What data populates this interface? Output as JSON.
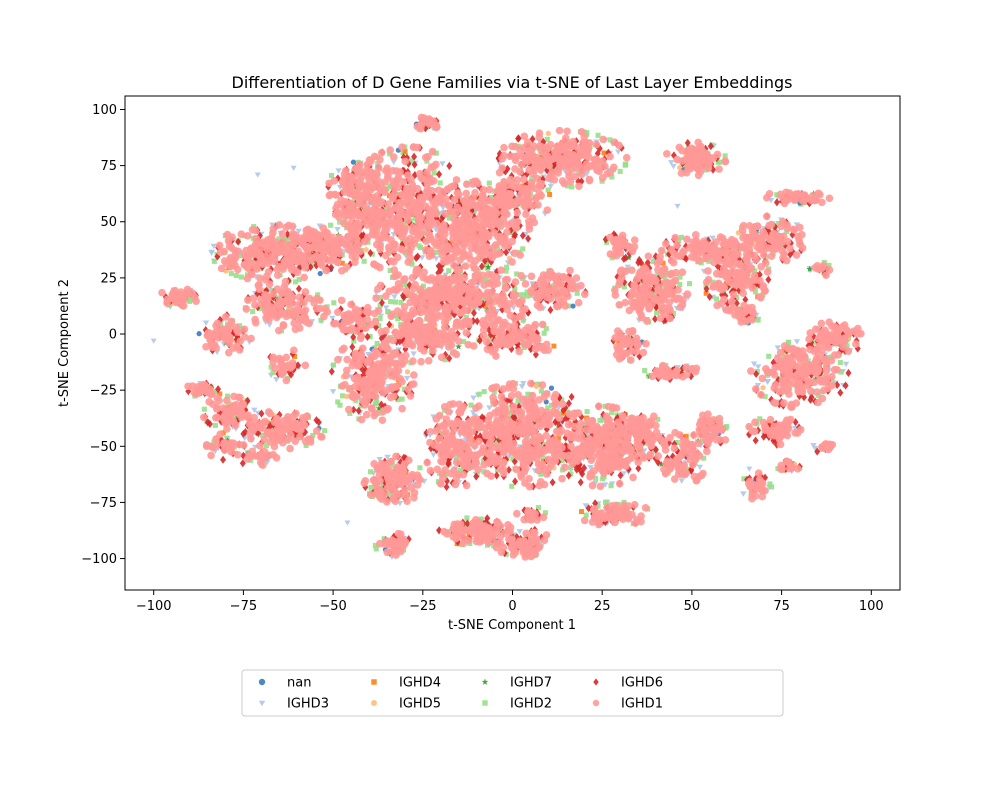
{
  "chart_data": {
    "type": "scatter",
    "title": "Differentiation of D Gene Families via t-SNE of Last Layer Embeddings",
    "xlabel": "t-SNE Component 1",
    "ylabel": "t-SNE Component 2",
    "xlim": [
      -108,
      108
    ],
    "ylim": [
      -114,
      106
    ],
    "xticks": [
      -100,
      -75,
      -50,
      -25,
      0,
      25,
      50,
      75,
      100
    ],
    "yticks": [
      -100,
      -75,
      -50,
      -25,
      0,
      25,
      50,
      75,
      100
    ],
    "grid": false,
    "legend_position": "bottom",
    "legend_columns": 5,
    "series": [
      {
        "name": "nan",
        "marker": "circle",
        "color": "#3a7bbf"
      },
      {
        "name": "IGHD3",
        "marker": "triangle-down",
        "color": "#aec7e8"
      },
      {
        "name": "IGHD4",
        "marker": "square",
        "color": "#ff7f0e"
      },
      {
        "name": "IGHD5",
        "marker": "hexagon",
        "color": "#ffbb78"
      },
      {
        "name": "IGHD7",
        "marker": "star",
        "color": "#2ca02c"
      },
      {
        "name": "IGHD2",
        "marker": "square",
        "color": "#98df8a"
      },
      {
        "name": "IGHD6",
        "marker": "diamond",
        "color": "#d62728"
      },
      {
        "name": "IGHD1",
        "marker": "circle",
        "color": "#ff9896"
      }
    ],
    "clusters": [
      {
        "cx": -29,
        "cy": 55,
        "rx": 17,
        "ry": 27,
        "n": 520
      },
      {
        "cx": -10,
        "cy": 47,
        "rx": 14,
        "ry": 20,
        "n": 360
      },
      {
        "cx": -44,
        "cy": 65,
        "rx": 7,
        "ry": 11,
        "n": 120
      },
      {
        "cx": -43,
        "cy": 52,
        "rx": 7,
        "ry": 10,
        "n": 90
      },
      {
        "cx": -24,
        "cy": 94,
        "rx": 4,
        "ry": 3,
        "n": 30
      },
      {
        "cx": -15,
        "cy": 17,
        "rx": 22,
        "ry": 13,
        "n": 420
      },
      {
        "cx": 12,
        "cy": 20,
        "rx": 8,
        "ry": 9,
        "n": 110
      },
      {
        "cx": 14,
        "cy": 78,
        "rx": 17,
        "ry": 12,
        "n": 300
      },
      {
        "cx": 0,
        "cy": 60,
        "rx": 10,
        "ry": 12,
        "n": 160
      },
      {
        "cx": -66,
        "cy": 36,
        "rx": 17,
        "ry": 12,
        "n": 300
      },
      {
        "cx": -52,
        "cy": 38,
        "rx": 12,
        "ry": 10,
        "n": 150
      },
      {
        "cx": -64,
        "cy": 13,
        "rx": 10,
        "ry": 11,
        "n": 160
      },
      {
        "cx": -80,
        "cy": 0,
        "rx": 7,
        "ry": 8,
        "n": 90
      },
      {
        "cx": -93,
        "cy": 16,
        "rx": 6,
        "ry": 4,
        "n": 60
      },
      {
        "cx": -45,
        "cy": 7,
        "rx": 8,
        "ry": 8,
        "n": 90
      },
      {
        "cx": -24,
        "cy": 0,
        "rx": 12,
        "ry": 12,
        "n": 200
      },
      {
        "cx": -39,
        "cy": -20,
        "rx": 11,
        "ry": 18,
        "n": 260
      },
      {
        "cx": -63,
        "cy": -14,
        "rx": 5,
        "ry": 7,
        "n": 40
      },
      {
        "cx": 0,
        "cy": -2,
        "rx": 12,
        "ry": 8,
        "n": 140
      },
      {
        "cx": -86,
        "cy": -25,
        "rx": 5,
        "ry": 3,
        "n": 30
      },
      {
        "cx": -79,
        "cy": -35,
        "rx": 7,
        "ry": 7,
        "n": 80
      },
      {
        "cx": -66,
        "cy": -43,
        "rx": 13,
        "ry": 8,
        "n": 150
      },
      {
        "cx": -80,
        "cy": -50,
        "rx": 5,
        "ry": 6,
        "n": 40
      },
      {
        "cx": -71,
        "cy": -55,
        "rx": 5,
        "ry": 4,
        "n": 35
      },
      {
        "cx": 3,
        "cy": -45,
        "rx": 19,
        "ry": 22,
        "n": 560
      },
      {
        "cx": 25,
        "cy": -50,
        "rx": 13,
        "ry": 17,
        "n": 300
      },
      {
        "cx": -16,
        "cy": -50,
        "rx": 8,
        "ry": 18,
        "n": 180
      },
      {
        "cx": 35,
        "cy": -45,
        "rx": 7,
        "ry": 10,
        "n": 110
      },
      {
        "cx": -33,
        "cy": -65,
        "rx": 8,
        "ry": 10,
        "n": 150
      },
      {
        "cx": -10,
        "cy": -88,
        "rx": 10,
        "ry": 6,
        "n": 140
      },
      {
        "cx": 3,
        "cy": -93,
        "rx": 8,
        "ry": 6,
        "n": 90
      },
      {
        "cx": -33,
        "cy": -94,
        "rx": 5,
        "ry": 5,
        "n": 50
      },
      {
        "cx": 5,
        "cy": -80,
        "rx": 4,
        "ry": 3,
        "n": 25
      },
      {
        "cx": 28,
        "cy": -80,
        "rx": 10,
        "ry": 5,
        "n": 100
      },
      {
        "cx": 55,
        "cy": -43,
        "rx": 5,
        "ry": 7,
        "n": 70
      },
      {
        "cx": 47,
        "cy": -55,
        "rx": 7,
        "ry": 12,
        "n": 110
      },
      {
        "cx": 32,
        "cy": -5,
        "rx": 5,
        "ry": 7,
        "n": 60
      },
      {
        "cx": 45,
        "cy": -17,
        "rx": 8,
        "ry": 3,
        "n": 50
      },
      {
        "cx": 39,
        "cy": 20,
        "rx": 10,
        "ry": 14,
        "n": 220
      },
      {
        "cx": 52,
        "cy": 38,
        "rx": 10,
        "ry": 6,
        "n": 100
      },
      {
        "cx": 62,
        "cy": 27,
        "rx": 9,
        "ry": 16,
        "n": 220
      },
      {
        "cx": 72,
        "cy": 42,
        "rx": 9,
        "ry": 10,
        "n": 140
      },
      {
        "cx": 30,
        "cy": 40,
        "rx": 4,
        "ry": 7,
        "n": 50
      },
      {
        "cx": 51,
        "cy": 78,
        "rx": 8,
        "ry": 7,
        "n": 120
      },
      {
        "cx": 80,
        "cy": 61,
        "rx": 9,
        "ry": 3,
        "n": 60
      },
      {
        "cx": 80,
        "cy": -18,
        "rx": 13,
        "ry": 14,
        "n": 260
      },
      {
        "cx": 90,
        "cy": -2,
        "rx": 7,
        "ry": 8,
        "n": 100
      },
      {
        "cx": 73,
        "cy": -43,
        "rx": 7,
        "ry": 6,
        "n": 80
      },
      {
        "cx": 87,
        "cy": -50,
        "rx": 3,
        "ry": 3,
        "n": 20
      },
      {
        "cx": 68,
        "cy": -68,
        "rx": 4,
        "ry": 6,
        "n": 40
      },
      {
        "cx": 77,
        "cy": -59,
        "rx": 3,
        "ry": 3,
        "n": 20
      },
      {
        "cx": 86,
        "cy": 29,
        "rx": 3,
        "ry": 3,
        "n": 15
      },
      {
        "cx": 65,
        "cy": 8,
        "rx": 4,
        "ry": 4,
        "n": 30
      }
    ]
  }
}
